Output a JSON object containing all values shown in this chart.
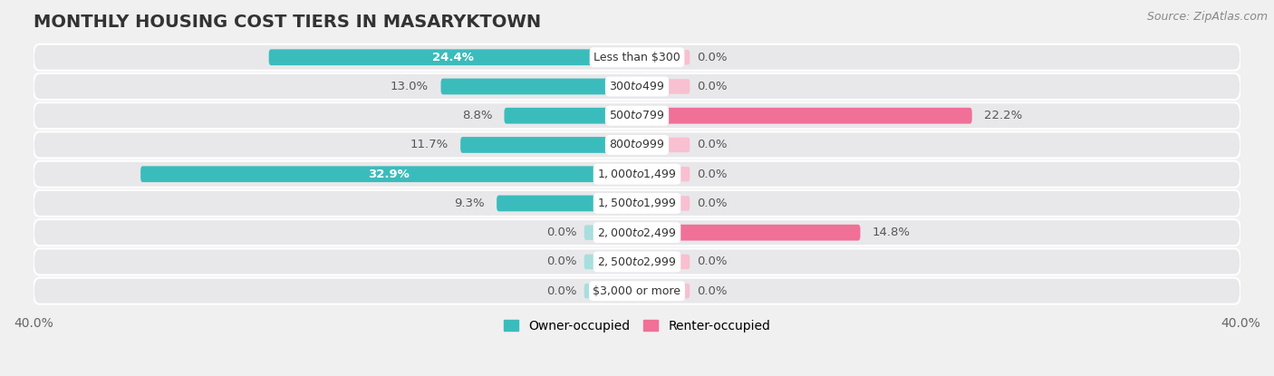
{
  "title": "MONTHLY HOUSING COST TIERS IN MASARYKTOWN",
  "source": "Source: ZipAtlas.com",
  "categories": [
    "Less than $300",
    "$300 to $499",
    "$500 to $799",
    "$800 to $999",
    "$1,000 to $1,499",
    "$1,500 to $1,999",
    "$2,000 to $2,499",
    "$2,500 to $2,999",
    "$3,000 or more"
  ],
  "owner_values": [
    24.4,
    13.0,
    8.8,
    11.7,
    32.9,
    9.3,
    0.0,
    0.0,
    0.0
  ],
  "renter_values": [
    0.0,
    0.0,
    22.2,
    0.0,
    0.0,
    0.0,
    14.8,
    0.0,
    0.0
  ],
  "owner_color": "#3BBCBC",
  "renter_color": "#F07098",
  "owner_stub_color": "#A8DEDE",
  "renter_stub_color": "#F8C0D0",
  "owner_label": "Owner-occupied",
  "renter_label": "Renter-occupied",
  "xlim": [
    -40,
    40
  ],
  "background_color": "#f0f0f0",
  "row_bg_color": "#e8e8eb",
  "row_bg_light": "#f8f8fa",
  "title_fontsize": 14,
  "source_fontsize": 9,
  "label_fontsize": 9.5,
  "cat_fontsize": 9,
  "axis_label_fontsize": 10,
  "bar_height": 0.55,
  "stub_size": 3.5,
  "figsize": [
    14.06,
    4.15
  ],
  "dpi": 100
}
